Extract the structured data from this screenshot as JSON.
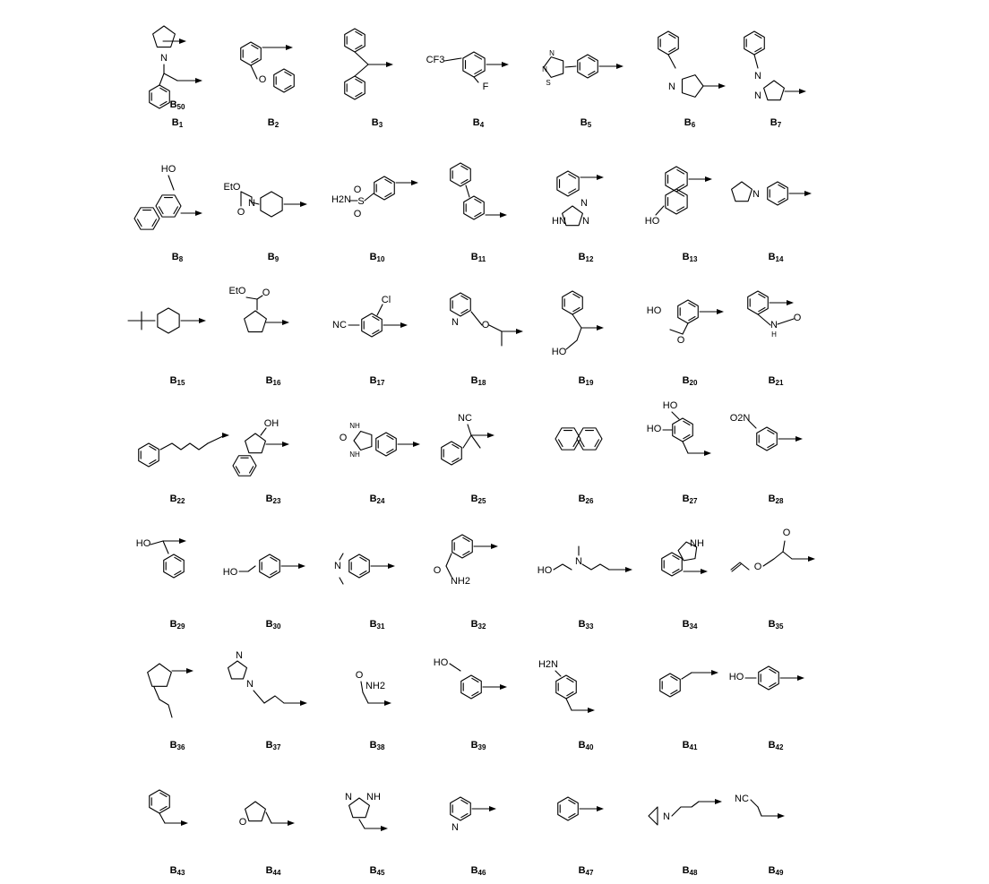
{
  "building_blocks": [
    {
      "id": "B1",
      "prefix": "B",
      "sub": "1",
      "atoms": [
        "N"
      ]
    },
    {
      "id": "B2",
      "prefix": "B",
      "sub": "2",
      "atoms": [
        "O"
      ]
    },
    {
      "id": "B3",
      "prefix": "B",
      "sub": "3",
      "atoms": []
    },
    {
      "id": "B4",
      "prefix": "B",
      "sub": "4",
      "atoms": [
        "CF3",
        "F"
      ]
    },
    {
      "id": "B5",
      "prefix": "B",
      "sub": "5",
      "atoms": [
        "N",
        "N",
        "S"
      ]
    },
    {
      "id": "B6",
      "prefix": "B",
      "sub": "6",
      "atoms": [
        "N"
      ]
    },
    {
      "id": "B7",
      "prefix": "B",
      "sub": "7",
      "atoms": [
        "N",
        "N"
      ]
    },
    {
      "id": "B8",
      "prefix": "B",
      "sub": "8",
      "atoms": [
        "HO"
      ]
    },
    {
      "id": "B9",
      "prefix": "B",
      "sub": "9",
      "atoms": [
        "EtO",
        "O",
        "N"
      ]
    },
    {
      "id": "B10",
      "prefix": "B",
      "sub": "10",
      "atoms": [
        "H2N",
        "S",
        "O",
        "O"
      ]
    },
    {
      "id": "B11",
      "prefix": "B",
      "sub": "11",
      "atoms": []
    },
    {
      "id": "B12",
      "prefix": "B",
      "sub": "12",
      "atoms": [
        "N",
        "N",
        "HN"
      ]
    },
    {
      "id": "B13",
      "prefix": "B",
      "sub": "13",
      "atoms": [
        "HO"
      ]
    },
    {
      "id": "B14",
      "prefix": "B",
      "sub": "14",
      "atoms": [
        "N"
      ]
    },
    {
      "id": "B15",
      "prefix": "B",
      "sub": "15",
      "atoms": []
    },
    {
      "id": "B16",
      "prefix": "B",
      "sub": "16",
      "atoms": [
        "EtO",
        "O"
      ]
    },
    {
      "id": "B17",
      "prefix": "B",
      "sub": "17",
      "atoms": [
        "NC",
        "Cl"
      ]
    },
    {
      "id": "B18",
      "prefix": "B",
      "sub": "18",
      "atoms": [
        "N",
        "O"
      ]
    },
    {
      "id": "B19",
      "prefix": "B",
      "sub": "19",
      "atoms": [
        "HO"
      ]
    },
    {
      "id": "B20",
      "prefix": "B",
      "sub": "20",
      "atoms": [
        "HO",
        "O"
      ]
    },
    {
      "id": "B21",
      "prefix": "B",
      "sub": "21",
      "atoms": [
        "N",
        "H",
        "O"
      ]
    },
    {
      "id": "B22",
      "prefix": "B",
      "sub": "22",
      "atoms": []
    },
    {
      "id": "B23",
      "prefix": "B",
      "sub": "23",
      "atoms": [
        "OH"
      ]
    },
    {
      "id": "B24",
      "prefix": "B",
      "sub": "24",
      "atoms": [
        "O",
        "NH",
        "NH"
      ]
    },
    {
      "id": "B25",
      "prefix": "B",
      "sub": "25",
      "atoms": [
        "NC"
      ]
    },
    {
      "id": "B26",
      "prefix": "B",
      "sub": "26",
      "atoms": []
    },
    {
      "id": "B27",
      "prefix": "B",
      "sub": "27",
      "atoms": [
        "HO",
        "HO"
      ]
    },
    {
      "id": "B28",
      "prefix": "B",
      "sub": "28",
      "atoms": [
        "O2N"
      ]
    },
    {
      "id": "B29",
      "prefix": "B",
      "sub": "29",
      "atoms": [
        "HO"
      ]
    },
    {
      "id": "B30",
      "prefix": "B",
      "sub": "30",
      "atoms": [
        "HO"
      ]
    },
    {
      "id": "B31",
      "prefix": "B",
      "sub": "31",
      "atoms": [
        "N"
      ]
    },
    {
      "id": "B32",
      "prefix": "B",
      "sub": "32",
      "atoms": [
        "O",
        "NH2"
      ]
    },
    {
      "id": "B33",
      "prefix": "B",
      "sub": "33",
      "atoms": [
        "HO",
        "N"
      ]
    },
    {
      "id": "B34",
      "prefix": "B",
      "sub": "34",
      "atoms": [
        "NH"
      ]
    },
    {
      "id": "B35",
      "prefix": "B",
      "sub": "35",
      "atoms": [
        "O",
        "O"
      ]
    },
    {
      "id": "B36",
      "prefix": "B",
      "sub": "36",
      "atoms": []
    },
    {
      "id": "B37",
      "prefix": "B",
      "sub": "37",
      "atoms": [
        "N",
        "N"
      ]
    },
    {
      "id": "B38",
      "prefix": "B",
      "sub": "38",
      "atoms": [
        "O",
        "NH2"
      ]
    },
    {
      "id": "B39",
      "prefix": "B",
      "sub": "39",
      "atoms": [
        "HO"
      ]
    },
    {
      "id": "B40",
      "prefix": "B",
      "sub": "40",
      "atoms": [
        "H2N"
      ]
    },
    {
      "id": "B41",
      "prefix": "B",
      "sub": "41",
      "atoms": []
    },
    {
      "id": "B42",
      "prefix": "B",
      "sub": "42",
      "atoms": [
        "HO"
      ]
    },
    {
      "id": "B43",
      "prefix": "B",
      "sub": "43",
      "atoms": []
    },
    {
      "id": "B44",
      "prefix": "B",
      "sub": "44",
      "atoms": [
        "O"
      ]
    },
    {
      "id": "B45",
      "prefix": "B",
      "sub": "45",
      "atoms": [
        "N",
        "NH"
      ]
    },
    {
      "id": "B46",
      "prefix": "B",
      "sub": "46",
      "atoms": [
        "N"
      ]
    },
    {
      "id": "B47",
      "prefix": "B",
      "sub": "47",
      "atoms": []
    },
    {
      "id": "B48",
      "prefix": "B",
      "sub": "48",
      "atoms": [
        "N"
      ]
    },
    {
      "id": "B49",
      "prefix": "B",
      "sub": "49",
      "atoms": [
        "NC"
      ]
    },
    {
      "id": "B50",
      "prefix": "B",
      "sub": "50",
      "atoms": []
    }
  ]
}
